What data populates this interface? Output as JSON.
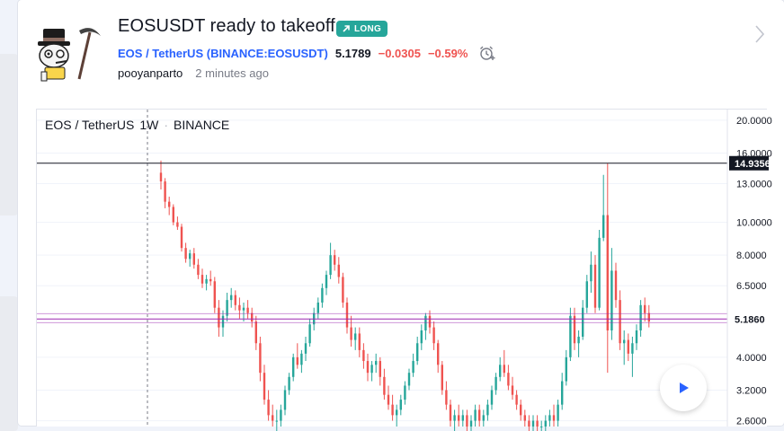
{
  "idea": {
    "title": "EOSUSDT ready to takeoff",
    "badge": "LONG",
    "symbol_link": "EOS / TetherUS",
    "exchange_open": "(",
    "exchange_link": "BINANCE:EOSUSDT",
    "exchange_close": ")",
    "price": "5.1789",
    "change": "−0.0305",
    "change_pct": "−0.59%",
    "author": "pooyanparto",
    "time": "2 minutes ago"
  },
  "chart": {
    "symbol": "EOS / TetherUS",
    "interval": "1W",
    "dot": "·",
    "exchange": "BINANCE",
    "price_scale": [
      "20.0000",
      "16.0000",
      "13.0000",
      "10.0000",
      "8.0000",
      "6.5000",
      "5.1860",
      "4.0000",
      "3.2000",
      "2.6000"
    ],
    "resistance_label": "14.9356",
    "resistance_value": 14.9356,
    "current_label": "5.1860",
    "current_value": 5.186
  },
  "chart_data": {
    "type": "candlestick",
    "title": "",
    "scale": "log",
    "ylim": [
      2.5,
      21.5
    ],
    "y_ticks": [
      20,
      16,
      13,
      10,
      8,
      6.5,
      4,
      3.2,
      2.6
    ],
    "lines": [
      {
        "label": "14.9356",
        "value": 14.9356,
        "color": "#131722"
      },
      {
        "label": "5.1860",
        "value": 5.186,
        "color": "#9c27b0"
      }
    ],
    "series": [
      {
        "values": [
          [
            14.0,
            15.2,
            12.5,
            13.2
          ],
          [
            13.2,
            13.5,
            11.0,
            11.5
          ],
          [
            11.5,
            11.9,
            10.5,
            11.1
          ],
          [
            11.1,
            11.3,
            9.8,
            10.0
          ],
          [
            10.0,
            10.4,
            9.5,
            9.7
          ],
          [
            9.7,
            9.9,
            8.2,
            8.4
          ],
          [
            8.4,
            8.7,
            7.6,
            7.8
          ],
          [
            7.8,
            8.3,
            7.4,
            8.1
          ],
          [
            8.1,
            8.4,
            7.3,
            7.5
          ],
          [
            7.5,
            7.8,
            6.8,
            7.0
          ],
          [
            7.0,
            7.3,
            6.4,
            6.6
          ],
          [
            6.6,
            7.0,
            6.3,
            6.8
          ],
          [
            6.8,
            7.2,
            6.5,
            6.7
          ],
          [
            6.7,
            6.9,
            5.4,
            5.6
          ],
          [
            5.6,
            5.9,
            4.6,
            4.9
          ],
          [
            4.9,
            5.5,
            4.6,
            5.3
          ],
          [
            5.3,
            6.2,
            5.1,
            5.9
          ],
          [
            5.9,
            6.4,
            5.6,
            6.1
          ],
          [
            6.1,
            6.3,
            5.5,
            5.7
          ],
          [
            5.7,
            6.0,
            5.2,
            5.5
          ],
          [
            5.5,
            5.8,
            5.1,
            5.6
          ],
          [
            5.6,
            5.9,
            5.2,
            5.4
          ],
          [
            5.4,
            5.6,
            4.9,
            5.1
          ],
          [
            5.1,
            5.3,
            4.2,
            4.4
          ],
          [
            4.4,
            4.6,
            3.4,
            3.6
          ],
          [
            3.6,
            3.8,
            2.9,
            3.0
          ],
          [
            3.0,
            3.2,
            2.6,
            2.7
          ],
          [
            2.7,
            2.9,
            2.5,
            2.6
          ],
          [
            2.6,
            2.8,
            2.4,
            2.6
          ],
          [
            2.6,
            2.9,
            2.5,
            2.8
          ],
          [
            2.8,
            3.3,
            2.7,
            3.2
          ],
          [
            3.2,
            3.6,
            3.1,
            3.5
          ],
          [
            3.5,
            4.1,
            3.4,
            4.0
          ],
          [
            4.0,
            4.4,
            3.7,
            3.8
          ],
          [
            3.8,
            4.2,
            3.6,
            4.1
          ],
          [
            4.1,
            4.6,
            3.9,
            4.4
          ],
          [
            4.4,
            5.2,
            4.3,
            5.0
          ],
          [
            5.0,
            5.6,
            4.8,
            5.4
          ],
          [
            5.4,
            6.0,
            5.2,
            5.8
          ],
          [
            5.8,
            6.6,
            5.6,
            6.4
          ],
          [
            6.4,
            7.2,
            6.1,
            7.0
          ],
          [
            7.0,
            8.7,
            6.8,
            8.0
          ],
          [
            8.0,
            8.3,
            7.2,
            7.5
          ],
          [
            7.5,
            7.9,
            6.6,
            6.9
          ],
          [
            6.9,
            7.1,
            5.6,
            5.8
          ],
          [
            5.8,
            6.0,
            4.7,
            4.9
          ],
          [
            4.9,
            5.3,
            4.3,
            4.5
          ],
          [
            4.5,
            4.9,
            4.2,
            4.7
          ],
          [
            4.7,
            4.9,
            4.0,
            4.2
          ],
          [
            4.2,
            4.4,
            3.7,
            3.9
          ],
          [
            3.9,
            4.1,
            3.4,
            3.6
          ],
          [
            3.6,
            3.9,
            3.4,
            3.8
          ],
          [
            3.8,
            4.1,
            3.6,
            3.9
          ],
          [
            3.9,
            4.0,
            3.3,
            3.5
          ],
          [
            3.5,
            3.7,
            3.0,
            3.1
          ],
          [
            3.1,
            3.3,
            2.8,
            2.9
          ],
          [
            2.9,
            3.1,
            2.6,
            2.7
          ],
          [
            2.7,
            2.9,
            2.5,
            2.8
          ],
          [
            2.8,
            3.1,
            2.7,
            3.0
          ],
          [
            3.0,
            3.4,
            2.9,
            3.3
          ],
          [
            3.3,
            3.7,
            3.2,
            3.6
          ],
          [
            3.6,
            4.1,
            3.5,
            3.9
          ],
          [
            3.9,
            4.6,
            3.8,
            4.4
          ],
          [
            4.4,
            5.0,
            4.2,
            4.8
          ],
          [
            4.8,
            5.4,
            4.5,
            5.3
          ],
          [
            5.3,
            5.5,
            4.7,
            4.9
          ],
          [
            4.9,
            5.1,
            4.2,
            4.4
          ],
          [
            4.4,
            4.5,
            3.6,
            3.8
          ],
          [
            3.8,
            3.9,
            3.1,
            3.2
          ],
          [
            3.2,
            3.4,
            2.8,
            2.9
          ],
          [
            2.9,
            3.0,
            2.5,
            2.6
          ],
          [
            2.6,
            2.8,
            2.4,
            2.7
          ],
          [
            2.7,
            2.9,
            2.5,
            2.6
          ],
          [
            2.6,
            2.8,
            2.5,
            2.7
          ],
          [
            2.7,
            2.8,
            2.4,
            2.5
          ],
          [
            2.5,
            2.7,
            2.4,
            2.6
          ],
          [
            2.6,
            2.9,
            2.5,
            2.8
          ],
          [
            2.8,
            2.9,
            2.5,
            2.6
          ],
          [
            2.6,
            2.8,
            2.5,
            2.7
          ],
          [
            2.7,
            3.0,
            2.6,
            2.9
          ],
          [
            2.9,
            3.3,
            2.8,
            3.2
          ],
          [
            3.2,
            3.6,
            3.1,
            3.5
          ],
          [
            3.5,
            4.0,
            3.4,
            3.8
          ],
          [
            3.8,
            4.2,
            3.5,
            3.6
          ],
          [
            3.6,
            3.8,
            3.2,
            3.3
          ],
          [
            3.3,
            3.5,
            3.0,
            3.1
          ],
          [
            3.1,
            3.2,
            2.8,
            2.9
          ],
          [
            2.9,
            3.0,
            2.6,
            2.7
          ],
          [
            2.7,
            2.8,
            2.5,
            2.6
          ],
          [
            2.6,
            2.7,
            2.4,
            2.5
          ],
          [
            2.5,
            2.7,
            2.4,
            2.6
          ],
          [
            2.6,
            2.7,
            2.4,
            2.5
          ],
          [
            2.5,
            2.6,
            2.4,
            2.5
          ],
          [
            2.5,
            2.7,
            2.4,
            2.6
          ],
          [
            2.6,
            2.8,
            2.5,
            2.7
          ],
          [
            2.7,
            2.9,
            2.5,
            2.6
          ],
          [
            2.6,
            3.0,
            2.5,
            2.9
          ],
          [
            2.9,
            3.6,
            2.8,
            3.4
          ],
          [
            3.4,
            4.2,
            3.3,
            4.0
          ],
          [
            4.0,
            5.6,
            3.9,
            5.3
          ],
          [
            5.3,
            5.6,
            4.2,
            4.4
          ],
          [
            4.4,
            4.8,
            4.0,
            4.6
          ],
          [
            4.6,
            5.9,
            4.5,
            5.6
          ],
          [
            5.6,
            7.0,
            5.4,
            6.7
          ],
          [
            6.7,
            8.2,
            6.2,
            7.5
          ],
          [
            7.5,
            8.0,
            5.4,
            5.6
          ],
          [
            5.6,
            9.5,
            5.5,
            9.0
          ],
          [
            9.0,
            13.8,
            8.8,
            10.5
          ],
          [
            10.5,
            14.9,
            3.6,
            4.8
          ],
          [
            4.8,
            8.4,
            4.5,
            7.2
          ],
          [
            7.2,
            7.6,
            5.6,
            5.9
          ],
          [
            5.9,
            6.3,
            4.2,
            4.4
          ],
          [
            4.4,
            4.8,
            3.8,
            4.5
          ],
          [
            4.5,
            4.7,
            3.9,
            4.1
          ],
          [
            4.1,
            4.6,
            3.5,
            4.4
          ],
          [
            4.4,
            5.0,
            4.2,
            4.8
          ],
          [
            4.8,
            5.9,
            4.6,
            5.7
          ],
          [
            5.7,
            6.0,
            5.1,
            5.4
          ],
          [
            5.4,
            5.7,
            4.9,
            5.1
          ]
        ]
      }
    ]
  }
}
